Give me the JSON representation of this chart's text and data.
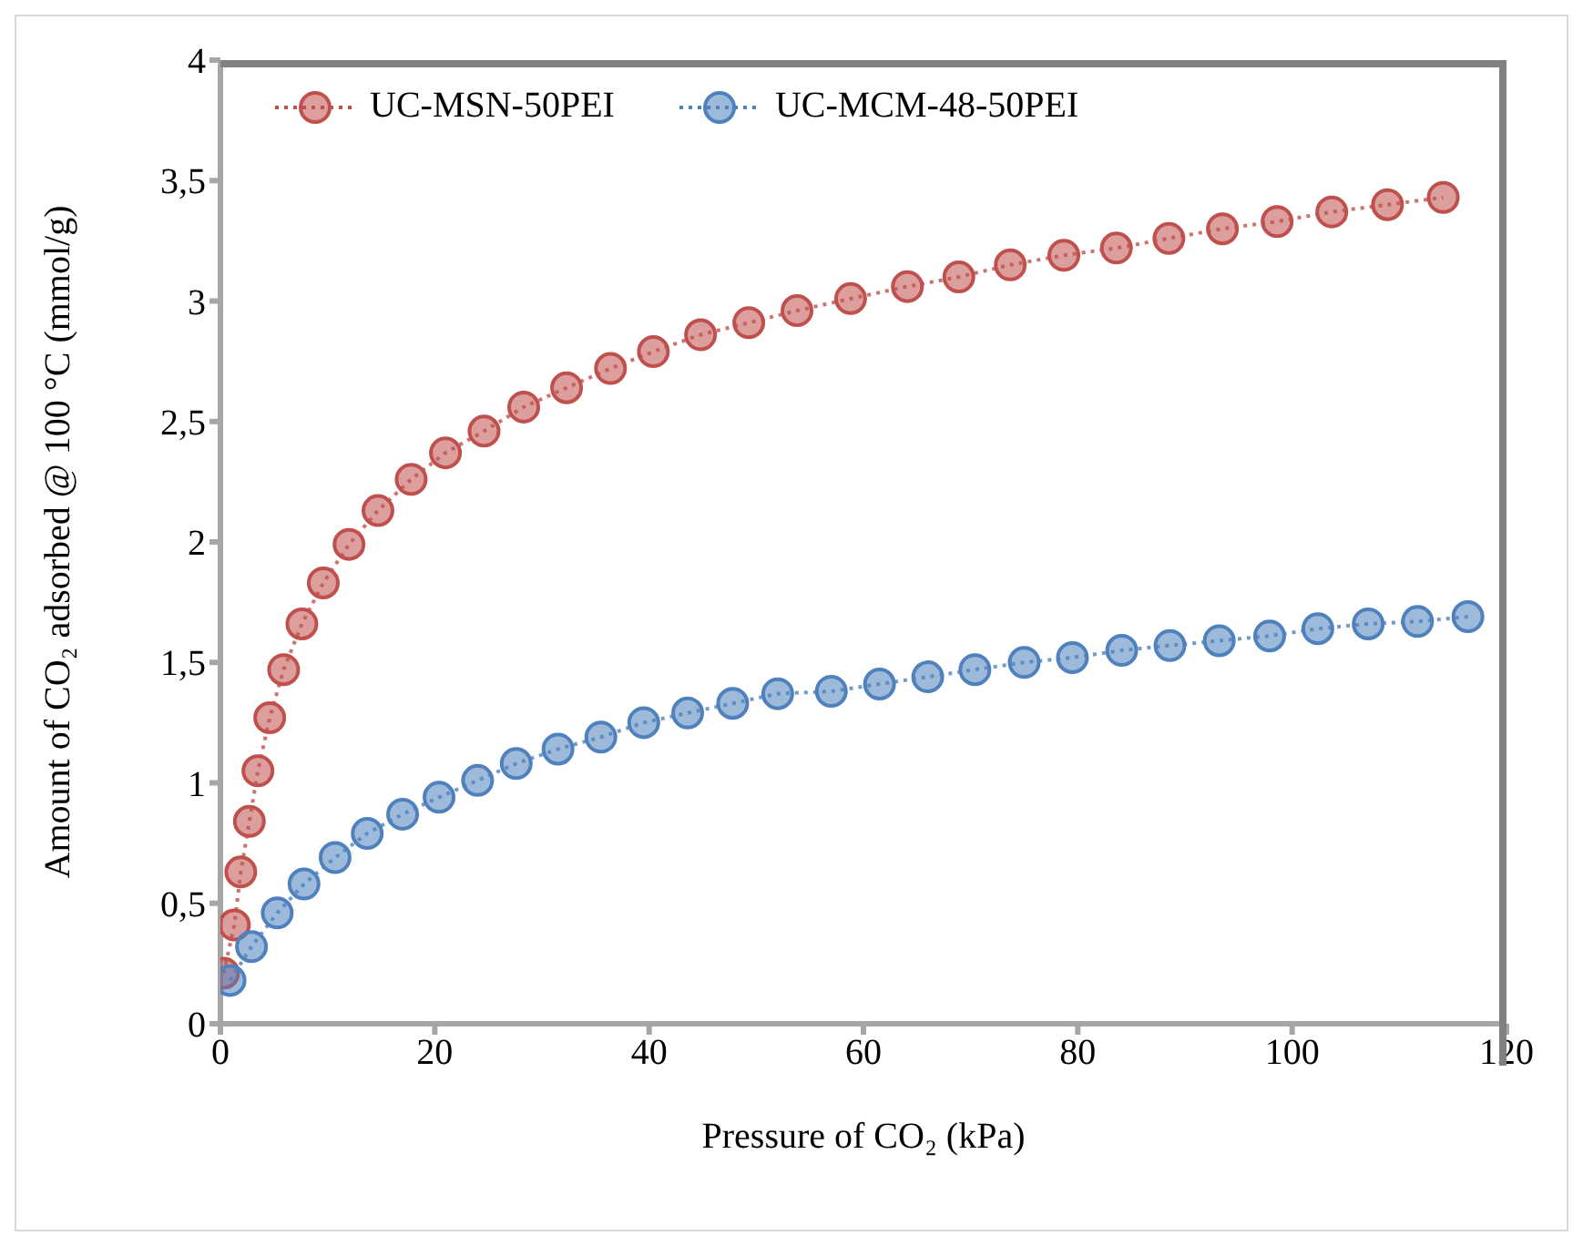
{
  "chart_data": {
    "type": "line",
    "xlabel": "Pressure of CO₂ (kPa)",
    "ylabel": "Amount of CO₂ adsorbed @ 100 °C (mmol/g)",
    "xlim": [
      0,
      120
    ],
    "xticks": [
      0,
      20,
      40,
      60,
      80,
      100,
      120
    ],
    "ylim": [
      0,
      4
    ],
    "yticks": [
      0,
      {
        "value": 0.5,
        "label": "0,5"
      },
      1,
      {
        "value": 1.5,
        "label": "1,5"
      },
      2,
      {
        "value": 2.5,
        "label": "2,5"
      },
      3,
      {
        "value": 3.5,
        "label": "3,5"
      },
      4
    ],
    "grid": false,
    "legend": "top left",
    "marker": "circle",
    "line_style": "dotted",
    "series": [
      {
        "name": "UC-MSN-50PEI",
        "color": "#c0504d",
        "x": [
          0.3,
          1.3,
          1.9,
          2.7,
          3.5,
          4.6,
          5.9,
          7.6,
          9.6,
          12.0,
          14.7,
          17.8,
          21.0,
          24.6,
          28.3,
          32.3,
          36.4,
          40.4,
          44.8,
          49.3,
          53.8,
          58.8,
          64.1,
          68.9,
          73.7,
          78.7,
          83.6,
          88.5,
          93.5,
          98.6,
          103.7,
          108.9,
          114.1
        ],
        "values": [
          0.21,
          0.41,
          0.63,
          0.84,
          1.05,
          1.27,
          1.47,
          1.66,
          1.83,
          1.99,
          2.13,
          2.26,
          2.37,
          2.46,
          2.56,
          2.64,
          2.72,
          2.79,
          2.86,
          2.91,
          2.96,
          3.01,
          3.06,
          3.1,
          3.15,
          3.19,
          3.22,
          3.26,
          3.3,
          3.33,
          3.37,
          3.4,
          3.43
        ]
      },
      {
        "name": "UC-MCM-48-50PEI",
        "color": "#4f81bd",
        "x": [
          0.9,
          2.9,
          5.3,
          7.8,
          10.7,
          13.7,
          17.0,
          20.4,
          24.0,
          27.6,
          31.5,
          35.5,
          39.5,
          43.6,
          47.8,
          52.0,
          57.0,
          61.5,
          66.0,
          70.4,
          75.0,
          79.5,
          84.1,
          88.6,
          93.2,
          97.9,
          102.4,
          107.1,
          111.7,
          116.4
        ],
        "values": [
          0.18,
          0.32,
          0.46,
          0.58,
          0.69,
          0.79,
          0.87,
          0.94,
          1.01,
          1.08,
          1.14,
          1.19,
          1.25,
          1.29,
          1.33,
          1.37,
          1.38,
          1.41,
          1.44,
          1.47,
          1.5,
          1.52,
          1.55,
          1.57,
          1.59,
          1.61,
          1.64,
          1.66,
          1.67,
          1.69
        ]
      }
    ]
  }
}
